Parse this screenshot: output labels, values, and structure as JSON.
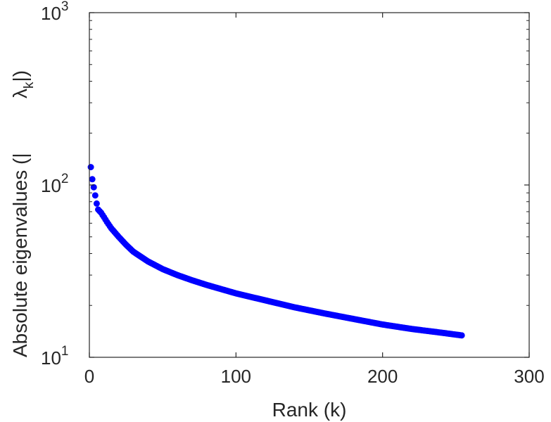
{
  "chart_data": {
    "type": "scatter",
    "title": "",
    "xlabel": "Rank (k)",
    "ylabel": {
      "main": "Absolute eigenvalues (|",
      "symbol": "λ",
      "subscript": "k",
      "close": "|)"
    },
    "xlim": [
      0,
      300
    ],
    "ylim": [
      10,
      1000
    ],
    "yscale": "log",
    "grid": false,
    "legend": "none",
    "x_ticks": [
      {
        "value": 0,
        "label": "0"
      },
      {
        "value": 100,
        "label": "100"
      },
      {
        "value": 200,
        "label": "200"
      },
      {
        "value": 300,
        "label": "300"
      }
    ],
    "y_ticks": [
      {
        "value": 10,
        "base": "10",
        "exp": "1"
      },
      {
        "value": 100,
        "base": "10",
        "exp": "2"
      },
      {
        "value": 1000,
        "base": "10",
        "exp": "3"
      }
    ],
    "series": [
      {
        "color": "#0000ff",
        "marker": "circle",
        "x_start": 1,
        "x_end": 254,
        "anchor_points": [
          {
            "x": 1,
            "y": 127
          },
          {
            "x": 2,
            "y": 108
          },
          {
            "x": 3,
            "y": 97
          },
          {
            "x": 4,
            "y": 87
          },
          {
            "x": 5,
            "y": 78
          },
          {
            "x": 6,
            "y": 72
          },
          {
            "x": 8,
            "y": 69
          },
          {
            "x": 10,
            "y": 65
          },
          {
            "x": 12,
            "y": 61
          },
          {
            "x": 15,
            "y": 56
          },
          {
            "x": 20,
            "y": 50
          },
          {
            "x": 25,
            "y": 45
          },
          {
            "x": 30,
            "y": 41
          },
          {
            "x": 40,
            "y": 36
          },
          {
            "x": 50,
            "y": 32.5
          },
          {
            "x": 60,
            "y": 30
          },
          {
            "x": 70,
            "y": 28
          },
          {
            "x": 80,
            "y": 26.3
          },
          {
            "x": 100,
            "y": 23.5
          },
          {
            "x": 120,
            "y": 21.4
          },
          {
            "x": 140,
            "y": 19.5
          },
          {
            "x": 160,
            "y": 18
          },
          {
            "x": 180,
            "y": 16.7
          },
          {
            "x": 200,
            "y": 15.5
          },
          {
            "x": 220,
            "y": 14.6
          },
          {
            "x": 240,
            "y": 13.9
          },
          {
            "x": 254,
            "y": 13.4
          }
        ]
      }
    ]
  }
}
